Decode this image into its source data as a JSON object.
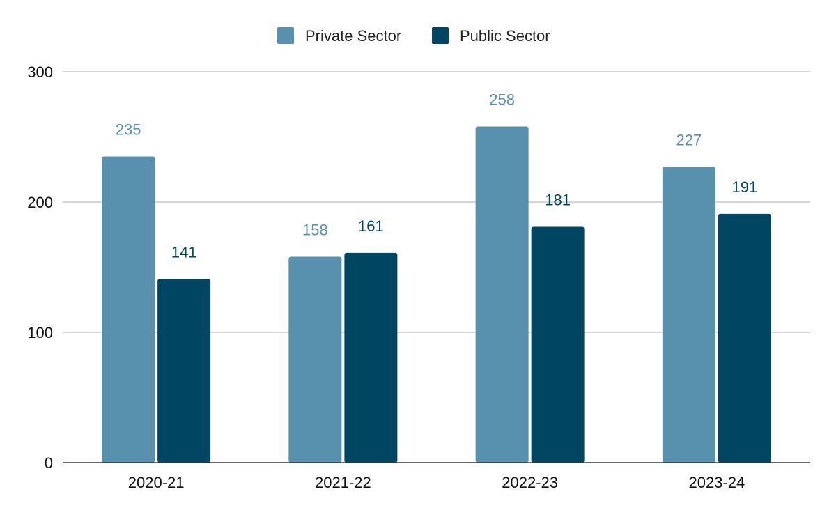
{
  "chart_data": {
    "type": "bar",
    "title": "",
    "xlabel": "",
    "ylabel": "",
    "categories": [
      "2020-21",
      "2021-22",
      "2022-23",
      "2023-24"
    ],
    "series": [
      {
        "name": "Private Sector",
        "values": [
          235,
          158,
          258,
          227
        ],
        "color": "#5891AD"
      },
      {
        "name": "Public Sector",
        "values": [
          141,
          161,
          181,
          191
        ],
        "color": "#004561"
      }
    ],
    "ylim": [
      0,
      300
    ],
    "yticks": [
      "0",
      "100",
      "200",
      "300"
    ],
    "grid": true,
    "legend": "top-center",
    "data_labels": true
  }
}
